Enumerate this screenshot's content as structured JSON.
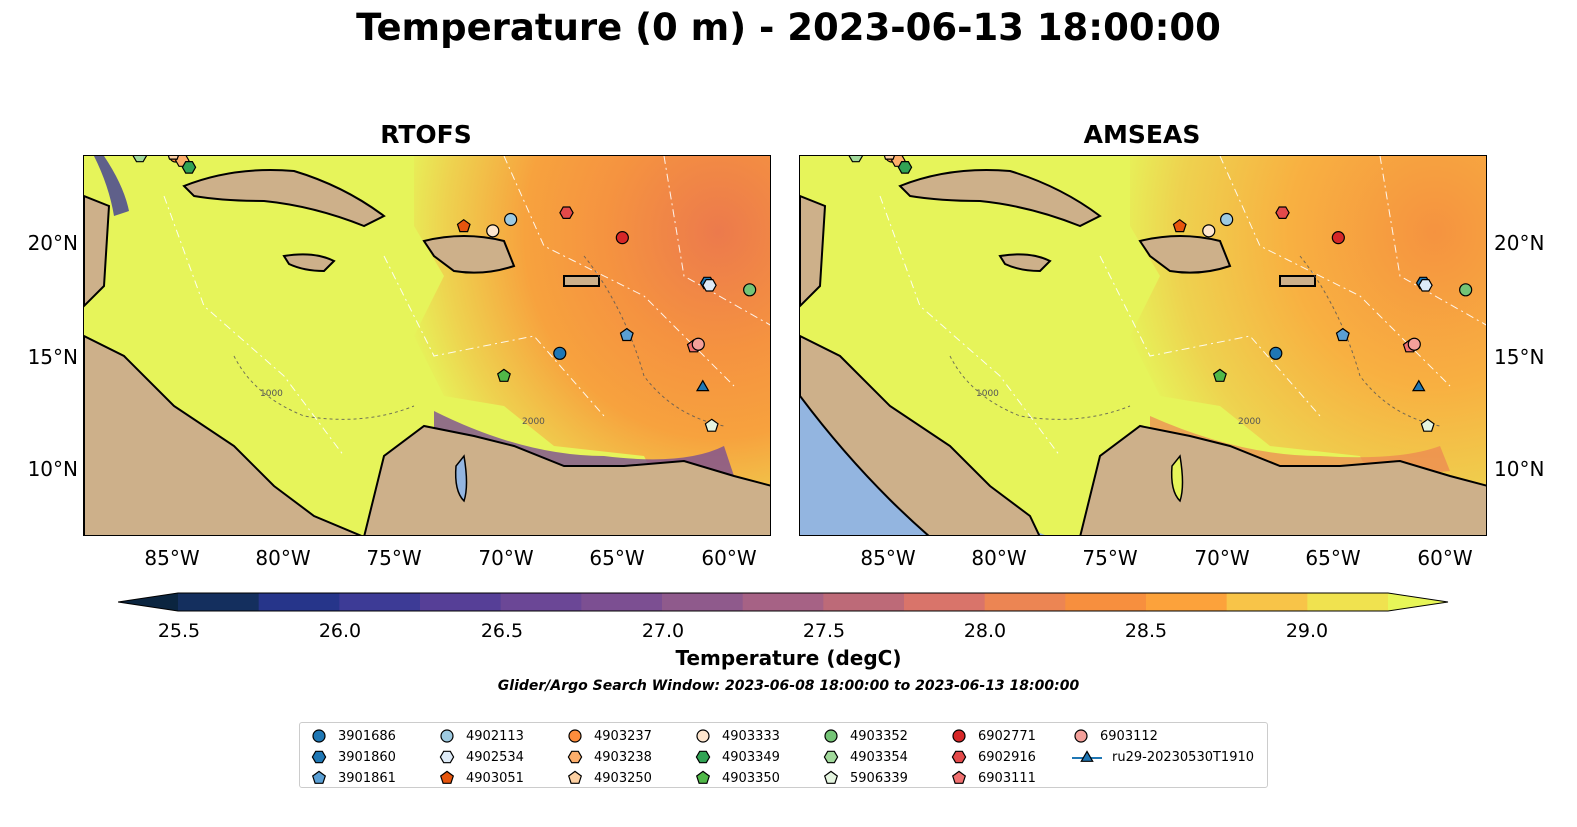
{
  "title": "Temperature (0 m) - 2023-06-13 18:00:00",
  "panels": [
    {
      "id": "rtofs",
      "title": "RTOFS"
    },
    {
      "id": "amseas",
      "title": "AMSEAS"
    }
  ],
  "map": {
    "lon_range": [
      -89,
      -58.2
    ],
    "lat_range": [
      7,
      23.8
    ],
    "x_ticks": [
      "85°W",
      "80°W",
      "75°W",
      "70°W",
      "65°W",
      "60°W"
    ],
    "x_tick_values": [
      -85,
      -80,
      -75,
      -70,
      -65,
      -60
    ],
    "y_ticks": [
      "20°N",
      "15°N",
      "10°N"
    ],
    "y_tick_values": [
      20,
      15,
      10
    ],
    "contour_labels": [
      "1000",
      "2000"
    ],
    "land_color": "#cdb08a",
    "pacific_color": "#93b5e0"
  },
  "colorbar": {
    "label": "Temperature (degC)",
    "min": 25.375,
    "max": 29.25,
    "tick_labels": [
      "25.5",
      "26.0",
      "26.5",
      "27.0",
      "27.5",
      "28.0",
      "28.5",
      "29.0"
    ],
    "tick_values": [
      25.5,
      26.0,
      26.5,
      27.0,
      27.5,
      28.0,
      28.5,
      29.0
    ],
    "extend": "both",
    "colors": [
      "#0b2540",
      "#142f5e",
      "#26358a",
      "#3d3b96",
      "#563f97",
      "#6b4796",
      "#7c4f92",
      "#8f5a8c",
      "#a66285",
      "#bd6a78",
      "#d9746a",
      "#ec8553",
      "#f78f3e",
      "#fca23b",
      "#f8c448",
      "#f0e24f",
      "#e7f658"
    ]
  },
  "search_window": "Glider/Argo Search Window: 2023-06-08 18:00:00 to 2023-06-13 18:00:00",
  "legend": [
    {
      "label": "3901686",
      "shape": "circle",
      "color": "#1f77b4"
    },
    {
      "label": "3901860",
      "shape": "hexagon",
      "color": "#1f77b4"
    },
    {
      "label": "3901861",
      "shape": "pentagon",
      "color": "#5a9fd4"
    },
    {
      "label": "4902113",
      "shape": "circle",
      "color": "#9ecae1"
    },
    {
      "label": "4902534",
      "shape": "hexagon",
      "color": "#deebf7"
    },
    {
      "label": "4903051",
      "shape": "pentagon",
      "color": "#e6550d"
    },
    {
      "label": "4903237",
      "shape": "circle",
      "color": "#fd8d3c"
    },
    {
      "label": "4903238",
      "shape": "hexagon",
      "color": "#fdae6b"
    },
    {
      "label": "4903250",
      "shape": "pentagon",
      "color": "#fdd0a2"
    },
    {
      "label": "4903333",
      "shape": "circle",
      "color": "#fee6ce"
    },
    {
      "label": "4903349",
      "shape": "hexagon",
      "color": "#31a354"
    },
    {
      "label": "4903350",
      "shape": "pentagon",
      "color": "#50b848"
    },
    {
      "label": "4903352",
      "shape": "circle",
      "color": "#74c476"
    },
    {
      "label": "4903354",
      "shape": "hexagon",
      "color": "#a1d99b"
    },
    {
      "label": "5906339",
      "shape": "pentagon",
      "color": "#e5f5e0"
    },
    {
      "label": "6902771",
      "shape": "circle",
      "color": "#d62728"
    },
    {
      "label": "6902916",
      "shape": "hexagon",
      "color": "#e34a4a"
    },
    {
      "label": "6903111",
      "shape": "pentagon",
      "color": "#f07070"
    },
    {
      "label": "6903112",
      "shape": "circle",
      "color": "#f4a09a"
    },
    {
      "label": "ru29-20230530T1910",
      "shape": "triangle",
      "color": "#1f77b4"
    }
  ],
  "markers": [
    {
      "id": "3901686",
      "lon": -67.7,
      "lat": 15.1
    },
    {
      "id": "3901860",
      "lon": -61.1,
      "lat": 18.2
    },
    {
      "id": "3901861",
      "lon": -64.7,
      "lat": 15.9
    },
    {
      "id": "4902113",
      "lon": -69.9,
      "lat": 21.0
    },
    {
      "id": "4902534",
      "lon": -61.0,
      "lat": 18.1
    },
    {
      "id": "4903051",
      "lon": -72.0,
      "lat": 20.7
    },
    {
      "id": "4903237",
      "lon": -84.9,
      "lat": 23.8
    },
    {
      "id": "4903238",
      "lon": -84.6,
      "lat": 23.6
    },
    {
      "id": "4903250",
      "lon": -85.0,
      "lat": 23.9
    },
    {
      "id": "4903333",
      "lon": -70.7,
      "lat": 20.5
    },
    {
      "id": "4903349",
      "lon": -84.3,
      "lat": 23.3
    },
    {
      "id": "4903350",
      "lon": -70.2,
      "lat": 14.1
    },
    {
      "id": "4903352",
      "lon": -59.2,
      "lat": 17.9
    },
    {
      "id": "4903354",
      "lon": -86.5,
      "lat": 23.8
    },
    {
      "id": "5906339",
      "lon": -60.9,
      "lat": 11.9
    },
    {
      "id": "6902771",
      "lon": -64.9,
      "lat": 20.2
    },
    {
      "id": "6902916",
      "lon": -67.4,
      "lat": 21.3
    },
    {
      "id": "6903111",
      "lon": -61.7,
      "lat": 15.4
    },
    {
      "id": "6903112",
      "lon": -61.5,
      "lat": 15.5
    },
    {
      "id": "ru29-20230530T1910",
      "lon": -61.3,
      "lat": 13.6
    }
  ]
}
